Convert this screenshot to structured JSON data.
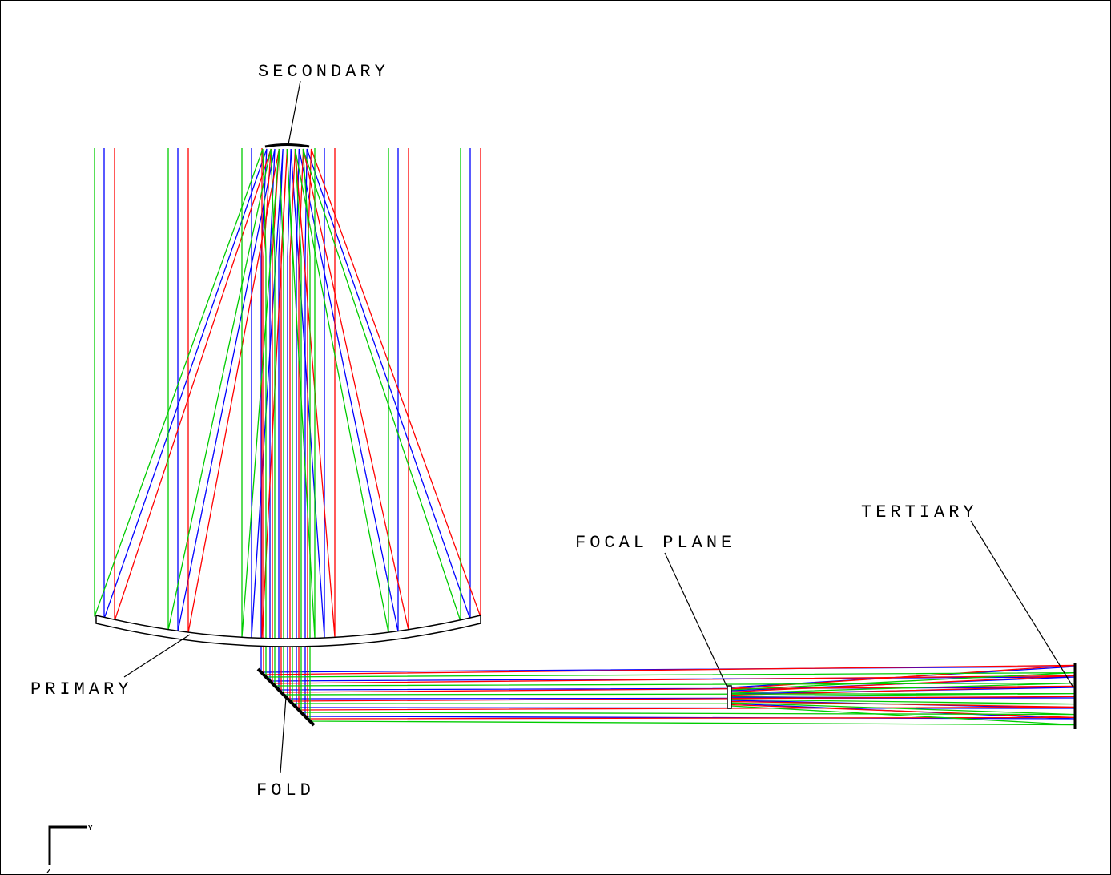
{
  "labels": {
    "secondary": "SECONDARY",
    "primary": "PRIMARY",
    "fold": "FOLD",
    "focal_plane": "FOCAL PLANE",
    "tertiary": "TERTIARY"
  },
  "axes": {
    "y": "Y",
    "z": "Z"
  }
}
